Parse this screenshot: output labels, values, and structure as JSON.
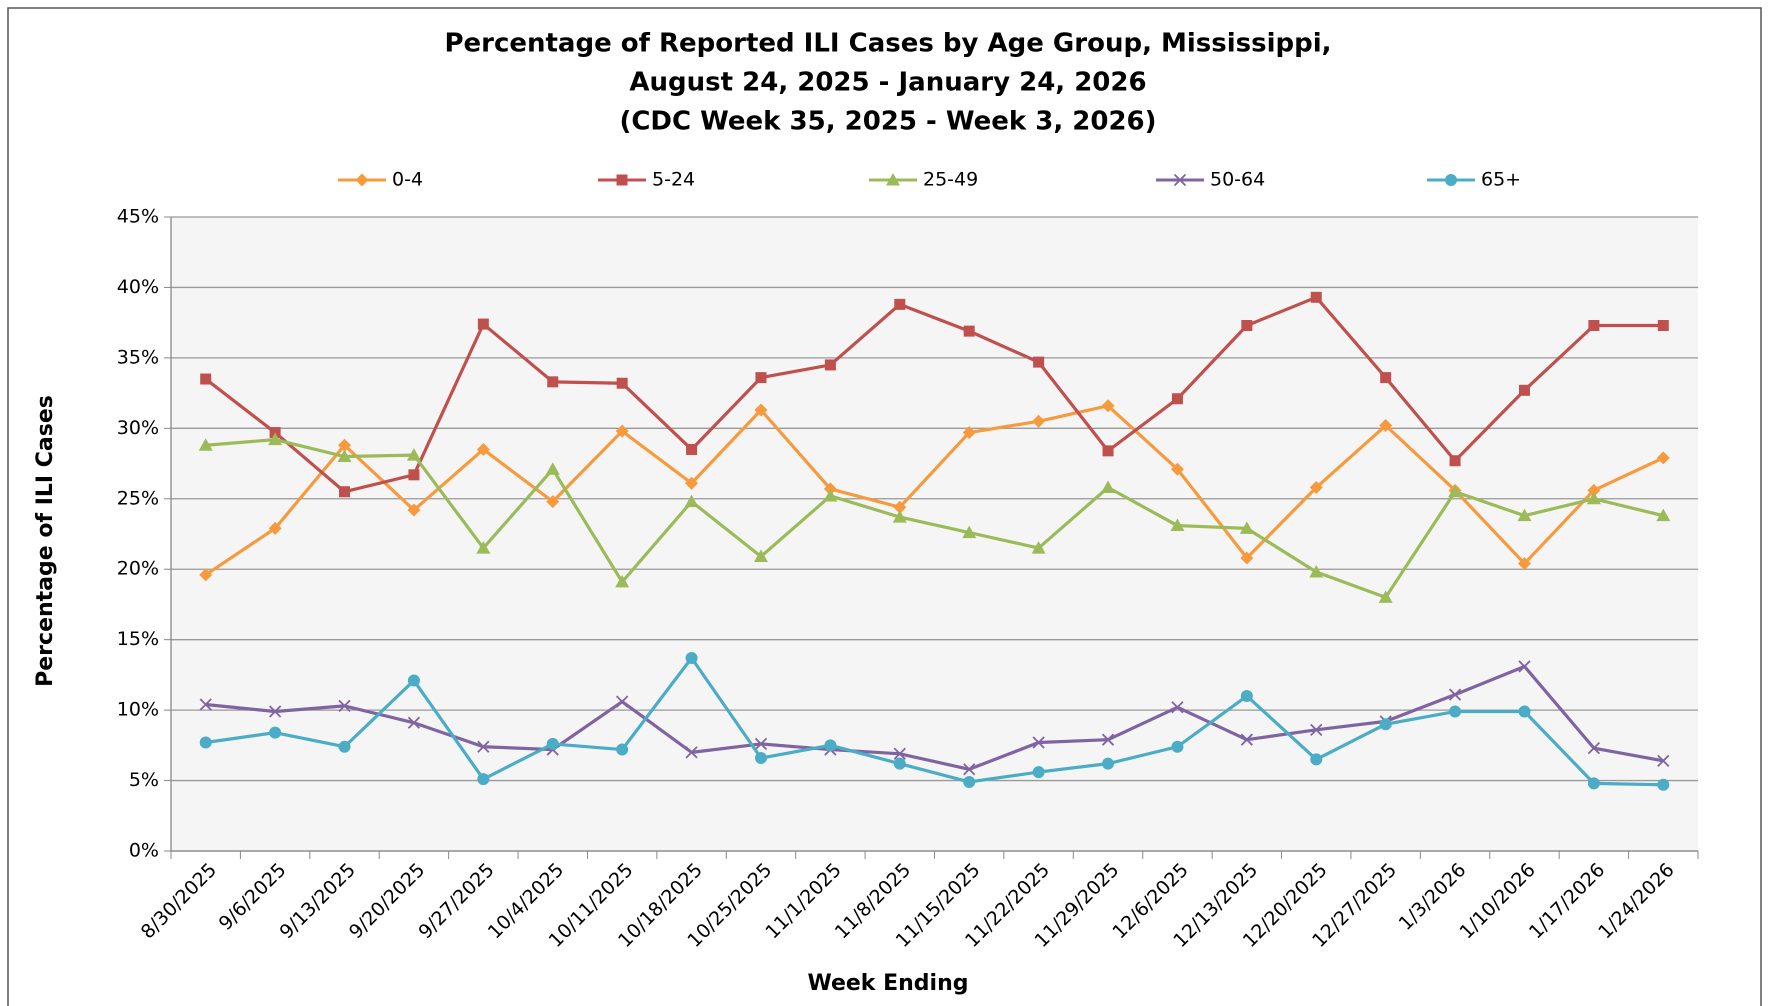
{
  "chart_data": {
    "type": "line",
    "title": [
      "Percentage of Reported ILI Cases by Age Group, Mississippi,",
      "August 24, 2025 - January 24, 2026",
      "(CDC Week 35, 2025 - Week 3, 2026)"
    ],
    "x_label": "Week Ending",
    "y_label": "Percentage of ILI Cases",
    "categories": [
      "8/30/2025",
      "9/6/2025",
      "9/13/2025",
      "9/20/2025",
      "9/27/2025",
      "10/4/2025",
      "10/11/2025",
      "10/18/2025",
      "10/25/2025",
      "11/1/2025",
      "11/8/2025",
      "11/15/2025",
      "11/22/2025",
      "11/29/2025",
      "12/6/2025",
      "12/13/2025",
      "12/20/2025",
      "12/27/2025",
      "1/3/2026",
      "1/10/2026",
      "1/17/2026",
      "1/24/2026"
    ],
    "series": [
      {
        "name": "0-4",
        "color": "#f79a3e",
        "marker": "diamond",
        "values": [
          19.6,
          22.9,
          28.8,
          24.2,
          28.5,
          24.8,
          29.8,
          26.1,
          31.3,
          25.7,
          24.4,
          29.7,
          30.5,
          31.6,
          27.1,
          20.8,
          25.8,
          30.2,
          25.6,
          20.4,
          25.6,
          27.9
        ]
      },
      {
        "name": "5-24",
        "color": "#c0504d",
        "marker": "square",
        "values": [
          33.5,
          29.7,
          25.5,
          26.7,
          37.4,
          33.3,
          33.2,
          28.5,
          33.6,
          34.5,
          38.8,
          36.9,
          34.7,
          28.4,
          32.1,
          37.3,
          39.3,
          33.6,
          27.7,
          32.7,
          37.3,
          37.3
        ]
      },
      {
        "name": "25-49",
        "color": "#9bbb59",
        "marker": "triangle",
        "values": [
          28.8,
          29.2,
          28.0,
          28.1,
          21.5,
          27.1,
          19.1,
          24.8,
          20.9,
          25.2,
          23.7,
          22.6,
          21.5,
          25.8,
          23.1,
          22.9,
          19.8,
          18.0,
          25.5,
          23.8,
          25.0,
          23.8
        ]
      },
      {
        "name": "50-64",
        "color": "#8064a2",
        "marker": "x",
        "values": [
          10.4,
          9.9,
          10.3,
          9.1,
          7.4,
          7.2,
          10.6,
          7.0,
          7.6,
          7.2,
          6.9,
          5.8,
          7.7,
          7.9,
          10.2,
          7.9,
          8.6,
          9.2,
          11.1,
          13.1,
          7.3,
          6.4
        ]
      },
      {
        "name": "65+",
        "color": "#4bacc6",
        "marker": "circle",
        "values": [
          7.7,
          8.4,
          7.4,
          12.1,
          5.1,
          7.6,
          7.2,
          13.7,
          6.6,
          7.5,
          6.2,
          4.9,
          5.6,
          6.2,
          7.4,
          11.0,
          6.5,
          9.0,
          9.9,
          9.9,
          4.8,
          4.7
        ]
      }
    ],
    "ylim": [
      0,
      45
    ],
    "yticks": [
      {
        "value": 0,
        "label": "0%"
      },
      {
        "value": 5,
        "label": "5%"
      },
      {
        "value": 10,
        "label": "10%"
      },
      {
        "value": 15,
        "label": "15%"
      },
      {
        "value": 20,
        "label": "20%"
      },
      {
        "value": 25,
        "label": "25%"
      },
      {
        "value": 30,
        "label": "30%"
      },
      {
        "value": 35,
        "label": "35%"
      },
      {
        "value": 40,
        "label": "40%"
      },
      {
        "value": 45,
        "label": "45%"
      }
    ],
    "grid": true,
    "legend": "top"
  }
}
